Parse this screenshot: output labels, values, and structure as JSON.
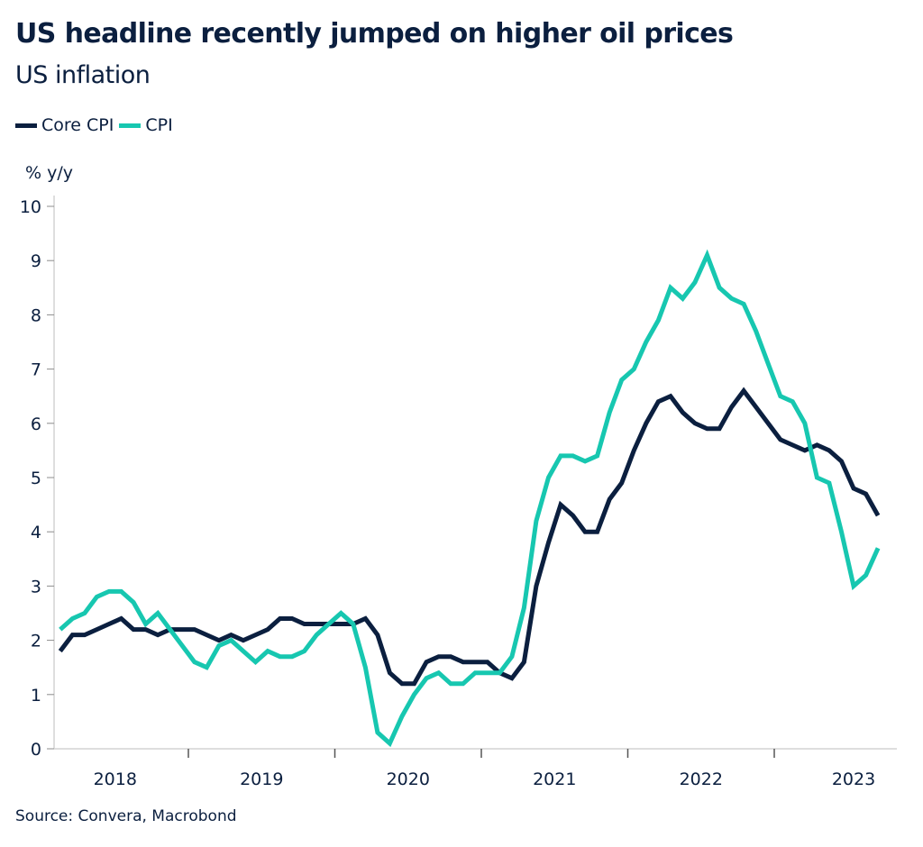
{
  "header": {
    "title": "US headline recently jumped on higher oil prices",
    "subtitle": "US inflation"
  },
  "legend": [
    {
      "label": "Core CPI",
      "color": "#0b1f3f"
    },
    {
      "label": "CPI",
      "color": "#17c7b0"
    }
  ],
  "footer": {
    "source": "Source: Convera, Macrobond"
  },
  "chart_data": {
    "type": "line",
    "title": "US headline recently jumped on higher oil prices",
    "subtitle": "US inflation",
    "ylabel": "% y/y",
    "xlabel": "",
    "ylim": [
      0,
      10
    ],
    "yticks": [
      "0",
      "1",
      "2",
      "3",
      "4",
      "5",
      "6",
      "7",
      "8",
      "9",
      "10"
    ],
    "xticks": [
      "2018",
      "2019",
      "2020",
      "2021",
      "2022",
      "2023"
    ],
    "x_start": "2018-02",
    "x_end": "2023-08",
    "frequency": "monthly",
    "grid": false,
    "legend_position": "top-left",
    "series": [
      {
        "name": "Core CPI",
        "color": "#0b1f3f",
        "values": [
          1.8,
          2.1,
          2.1,
          2.2,
          2.3,
          2.4,
          2.2,
          2.2,
          2.1,
          2.2,
          2.2,
          2.2,
          2.1,
          2.0,
          2.1,
          2.0,
          2.1,
          2.2,
          2.4,
          2.4,
          2.3,
          2.3,
          2.3,
          2.3,
          2.3,
          2.4,
          2.1,
          1.4,
          1.2,
          1.2,
          1.6,
          1.7,
          1.7,
          1.6,
          1.6,
          1.6,
          1.4,
          1.3,
          1.6,
          3.0,
          3.8,
          4.5,
          4.3,
          4.0,
          4.0,
          4.6,
          4.9,
          5.5,
          6.0,
          6.4,
          6.5,
          6.2,
          6.0,
          5.9,
          5.9,
          6.3,
          6.6,
          6.3,
          6.0,
          5.7,
          5.6,
          5.5,
          5.6,
          5.5,
          5.3,
          4.8,
          4.7,
          4.3
        ]
      },
      {
        "name": "CPI",
        "color": "#17c7b0",
        "values": [
          2.2,
          2.4,
          2.5,
          2.8,
          2.9,
          2.9,
          2.7,
          2.3,
          2.5,
          2.2,
          1.9,
          1.6,
          1.5,
          1.9,
          2.0,
          1.8,
          1.6,
          1.8,
          1.7,
          1.7,
          1.8,
          2.1,
          2.3,
          2.5,
          2.3,
          1.5,
          0.3,
          0.1,
          0.6,
          1.0,
          1.3,
          1.4,
          1.2,
          1.2,
          1.4,
          1.4,
          1.4,
          1.7,
          2.6,
          4.2,
          5.0,
          5.4,
          5.4,
          5.3,
          5.4,
          6.2,
          6.8,
          7.0,
          7.5,
          7.9,
          8.5,
          8.3,
          8.6,
          9.1,
          8.5,
          8.3,
          8.2,
          7.7,
          7.1,
          6.5,
          6.4,
          6.0,
          5.0,
          4.9,
          4.0,
          3.0,
          3.2,
          3.7
        ]
      }
    ]
  }
}
